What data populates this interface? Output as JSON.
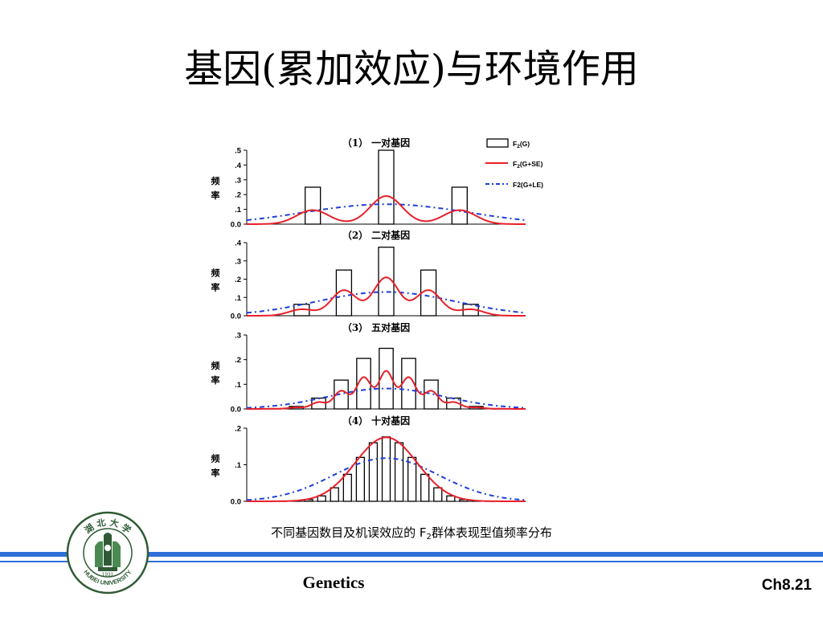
{
  "slide": {
    "title": "基因(累加效应)与环境作用",
    "caption_prefix": "不同基因数目及机误效应的 F",
    "caption_sub": "2",
    "caption_suffix": "群体表现型值频率分布",
    "footer_left": "Genetics",
    "footer_right": "Ch8.21"
  },
  "logo": {
    "top_text": "湖 北 大 学",
    "year": "1931",
    "bottom_text": "HUBEI UNIVERSITY",
    "colors": {
      "ring": "#2f5a35",
      "fill": "#4a8a52"
    }
  },
  "colors": {
    "bars": "#000000",
    "se_line": "#e8202a",
    "le_line": "#1d3fd6",
    "rules": "#2e6fd8"
  },
  "chart_data": [
    {
      "type": "bar",
      "panel_label": "（1）",
      "panel_title": "一对基因",
      "ylabel": "频率",
      "ylim": [
        0,
        0.5
      ],
      "yticks": [
        ".5",
        ".4",
        ".3",
        ".2",
        ".1",
        "0.0"
      ],
      "ytick_values": [
        0.5,
        0.4,
        0.3,
        0.2,
        0.1,
        0
      ],
      "x": [
        -1,
        0,
        1
      ],
      "values": [
        0.25,
        0.5,
        0.25
      ],
      "xlim": [
        -1.9,
        1.9
      ],
      "se_sigma": 0.22,
      "le_sigma": 0.75,
      "legend": [
        {
          "label": "F",
          "sub": "2",
          "suffix": "(G)",
          "style": "bar"
        },
        {
          "label": "F",
          "sub": "2",
          "suffix": "(G+SE)",
          "style": "solid"
        },
        {
          "label": "F2(G+LE)",
          "sub": "",
          "suffix": "",
          "style": "dashed"
        }
      ]
    },
    {
      "type": "bar",
      "panel_label": "（2）",
      "panel_title": "二对基因",
      "ylabel": "频率",
      "ylim": [
        0,
        0.4
      ],
      "yticks": [
        ".4",
        ".3",
        ".2",
        ".1",
        "0.0"
      ],
      "ytick_values": [
        0.4,
        0.3,
        0.2,
        0.1,
        0
      ],
      "x": [
        -2,
        -1,
        0,
        1,
        2
      ],
      "values": [
        0.0625,
        0.25,
        0.375,
        0.25,
        0.0625
      ],
      "xlim": [
        -3.3,
        3.3
      ],
      "se_sigma": 0.3,
      "le_sigma": 1.25
    },
    {
      "type": "bar",
      "panel_label": "（3）",
      "panel_title": "五对基因",
      "ylabel": "频率",
      "ylim": [
        0,
        0.3
      ],
      "yticks": [
        ".3",
        ".2",
        ".1",
        "0.0"
      ],
      "ytick_values": [
        0.3,
        0.2,
        0.1,
        0
      ],
      "x": [
        -5,
        -4,
        -3,
        -2,
        -1,
        0,
        1,
        2,
        3,
        4,
        5
      ],
      "values": [
        0.001,
        0.01,
        0.044,
        0.117,
        0.205,
        0.246,
        0.205,
        0.117,
        0.044,
        0.01,
        0.001
      ],
      "xlim": [
        -6.2,
        6.2
      ],
      "se_sigma": 0.33,
      "le_sigma": 2.0
    },
    {
      "type": "bar",
      "panel_label": "（4）",
      "panel_title": "十对基因",
      "ylabel": "频率",
      "ylim": [
        0,
        0.2
      ],
      "yticks": [
        ".2",
        ".1",
        "0.0"
      ],
      "ytick_values": [
        0.2,
        0.1,
        0
      ],
      "x": [
        -10,
        -9,
        -8,
        -7,
        -6,
        -5,
        -4,
        -3,
        -2,
        -1,
        0,
        1,
        2,
        3,
        4,
        5,
        6,
        7,
        8,
        9,
        10
      ],
      "values": [
        1e-06,
        2e-05,
        0.0002,
        0.0011,
        0.0046,
        0.0148,
        0.037,
        0.0739,
        0.1201,
        0.1602,
        0.1762,
        0.1602,
        0.1201,
        0.0739,
        0.037,
        0.0148,
        0.0046,
        0.0011,
        0.0002,
        2e-05,
        1e-06
      ],
      "xlim": [
        -10.8,
        10.8
      ],
      "se_sigma": 0.7,
      "le_sigma": 3.4
    }
  ]
}
